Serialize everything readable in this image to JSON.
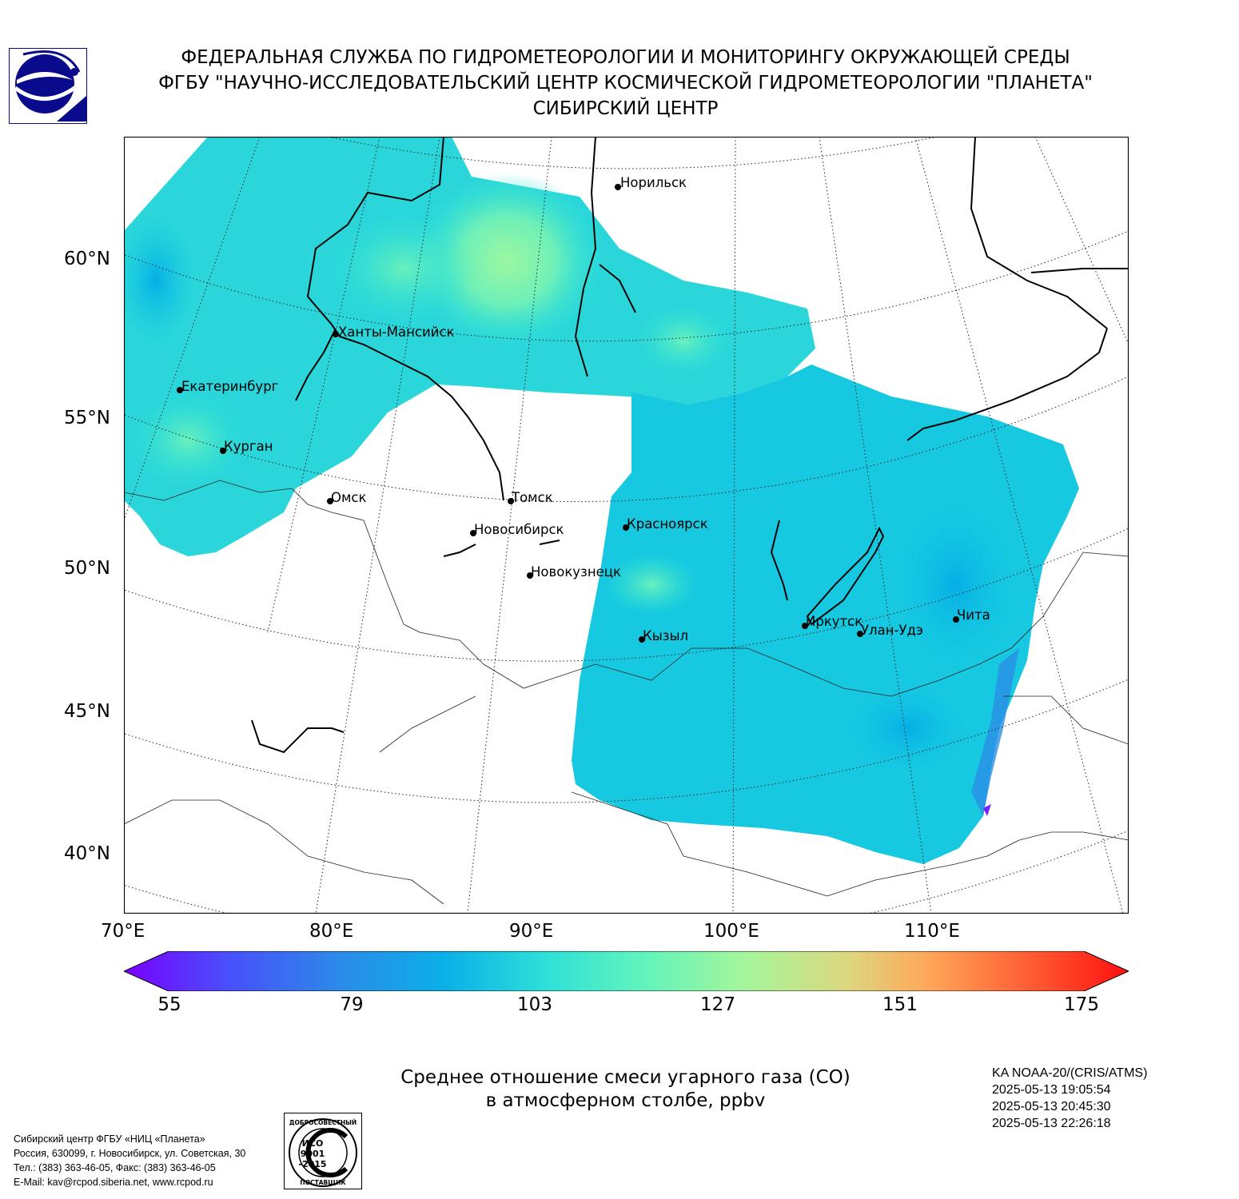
{
  "header": {
    "line1": "ФЕДЕРАЛЬНАЯ СЛУЖБА ПО ГИДРОМЕТЕОРОЛОГИИ И МОНИТОРИНГУ ОКРУЖАЮЩЕЙ СРЕДЫ",
    "line2": "ФГБУ \"НАУЧНО-ИССЛЕДОВАТЕЛЬСКИЙ ЦЕНТР КОСМИЧЕСКОЙ ГИДРОМЕТЕОРОЛОГИИ \"ПЛАНЕТА\"",
    "line3": "СИБИРСКИЙ ЦЕНТР"
  },
  "map": {
    "lat_labels": [
      "60°N",
      "55°N",
      "50°N",
      "45°N",
      "40°N"
    ],
    "lon_labels": [
      "70°E",
      "80°E",
      "90°E",
      "100°E",
      "110°E"
    ],
    "cities": [
      {
        "name": "Норильск"
      },
      {
        "name": "Ханты-Мансийск"
      },
      {
        "name": "Екатеринбург"
      },
      {
        "name": "Курган"
      },
      {
        "name": "Омск"
      },
      {
        "name": "Томск"
      },
      {
        "name": "Новосибирск"
      },
      {
        "name": "Красноярск"
      },
      {
        "name": "Новокузнецк"
      },
      {
        "name": "Кызыл"
      },
      {
        "name": "Иркутск"
      },
      {
        "name": "Улан-Удэ"
      },
      {
        "name": "Чита"
      }
    ],
    "field_colors": {
      "low": "#13c8e3",
      "mid": "#2fe3d4",
      "high": "#8ef7a8"
    }
  },
  "colorbar": {
    "ticks": [
      "55",
      "79",
      "103",
      "127",
      "151",
      "175"
    ],
    "min": 55,
    "max": 175
  },
  "title": {
    "line1": "Среднее отношение смеси угарного газа (CO)",
    "line2": "в атмосферном столбе, ppbv"
  },
  "satellite": {
    "name": "KA NOAA-20/(CRIS/ATMS)",
    "times": [
      "2025-05-13 19:05:54",
      "2025-05-13 20:45:30",
      "2025-05-13 22:26:18"
    ]
  },
  "footer": {
    "line1": "Сибирский центр ФГБУ «НИЦ «Планета»",
    "line2": "Россия, 630099, г. Новосибирск, ул. Советская, 30",
    "line3": "Тел.: (383) 363-46-05, Факс: (383) 363-46-05",
    "line4": "E-Mail: kav@rcpod.siberia.net, www.rcpod.ru"
  },
  "iso_badge": {
    "top": "ДОБРОСОВЕСТНЫЙ",
    "l1": "ИСО",
    "l2": "9001",
    "l3": "-2015",
    "bottom": "ПОСТАВЩИК"
  }
}
